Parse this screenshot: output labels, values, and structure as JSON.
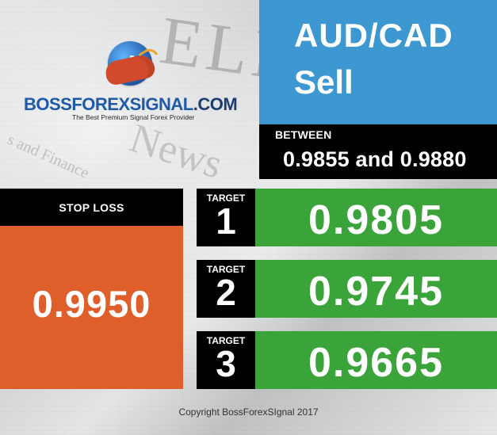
{
  "logo": {
    "title_part1": "BOSSFOREXSIGNAL",
    "title_part2": ".COM",
    "subtitle": "The Best Premium Signal Forex Provider"
  },
  "signal": {
    "pair": "AUD/CAD",
    "action": "Sell",
    "between_label": "BETWEEN",
    "between_range": "0.9855 and 0.9880"
  },
  "stop_loss": {
    "label": "STOP LOSS",
    "value": "0.9950"
  },
  "targets": [
    {
      "label": "TARGET",
      "number": "1",
      "value": "0.9805"
    },
    {
      "label": "TARGET",
      "number": "2",
      "value": "0.9745"
    },
    {
      "label": "TARGET",
      "number": "3",
      "value": "0.9665"
    }
  ],
  "footer": {
    "copyright": "Copyright BossForexSIgnal 2017"
  },
  "colors": {
    "pair_bg": "#3d98d2",
    "stop_loss_bg": "#df5f2a",
    "target_bg": "#3aa339",
    "black": "#000000"
  },
  "icons": {
    "logo_icon": "bull-chart-icon"
  }
}
